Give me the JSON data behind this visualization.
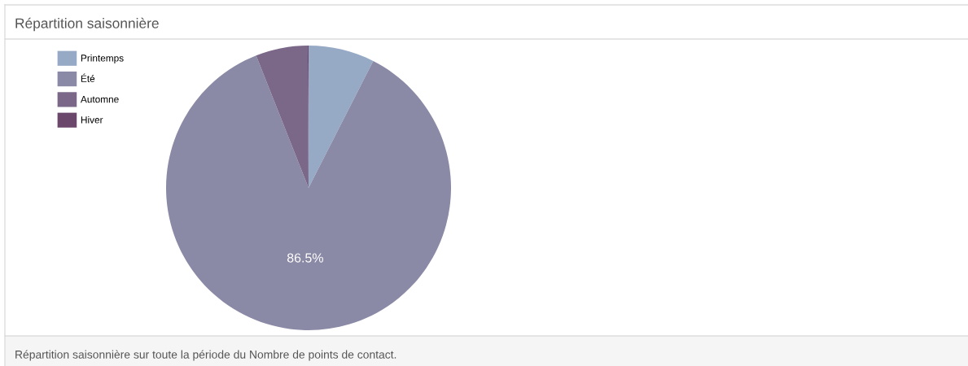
{
  "chart_data": {
    "type": "pie",
    "title": "Répartition saisonnière",
    "categories": [
      "Printemps",
      "Été",
      "Automne",
      "Hiver"
    ],
    "values": [
      7.5,
      86.5,
      5.9,
      0.1
    ],
    "colors": [
      "#97aac5",
      "#8a89a6",
      "#7b6888",
      "#6b486b"
    ],
    "value_labels": [
      null,
      "86.5%",
      null,
      null
    ],
    "legend": "top left",
    "annotations": [
      "Répartition saisonnière sur toute la période du Nombre de points de contact."
    ]
  }
}
